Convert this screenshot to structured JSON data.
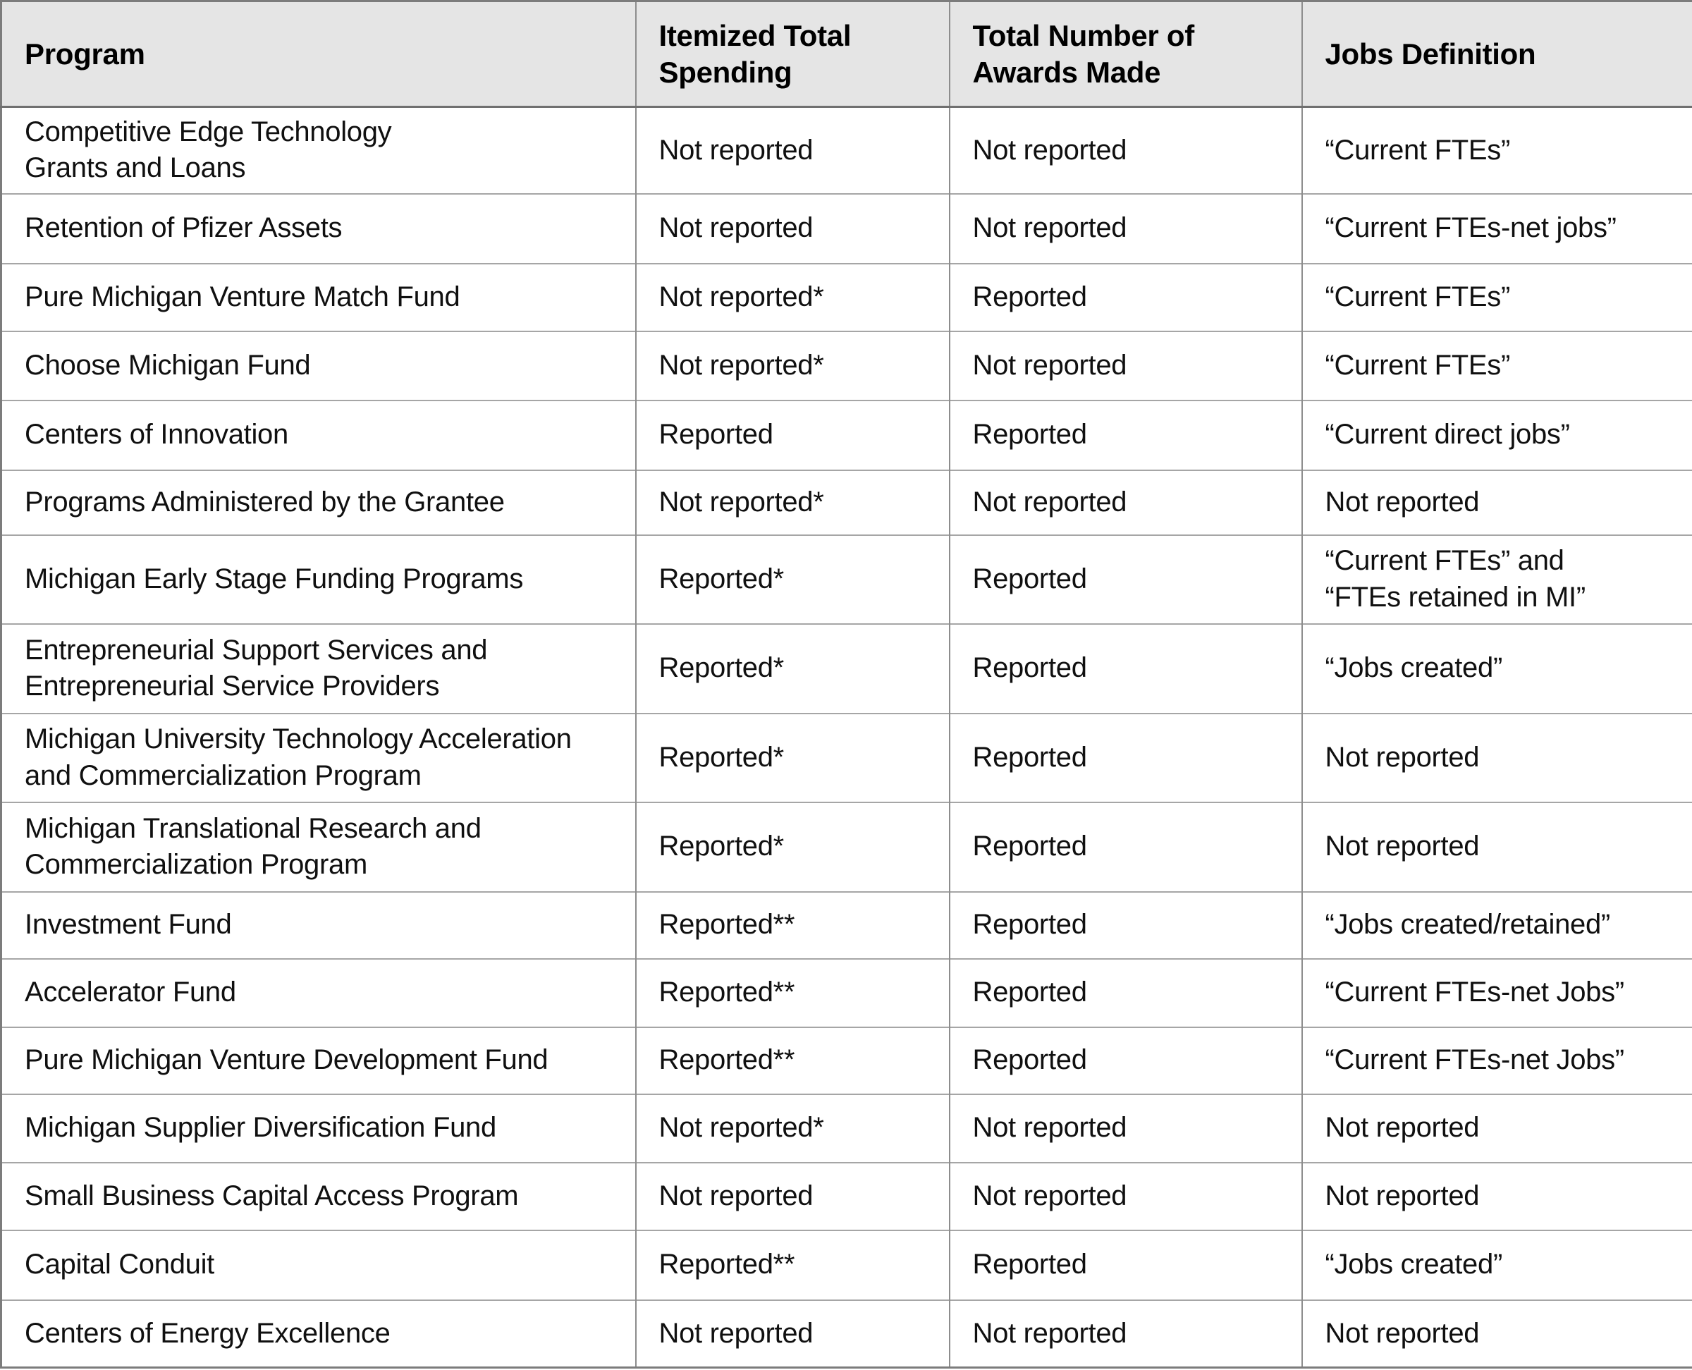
{
  "table": {
    "name": "program-reporting-table",
    "columns": [
      {
        "label": "Program"
      },
      {
        "label": "Itemized Total\nSpending"
      },
      {
        "label": "Total Number of\nAwards Made"
      },
      {
        "label": "Jobs Definition"
      }
    ],
    "rows": [
      {
        "program": "Competitive Edge Technology\nGrants and Loans",
        "spending": "Not reported",
        "awards": "Not reported",
        "jobs": "“Current FTEs”",
        "height": 123
      },
      {
        "program": "Retention of Pfizer Assets",
        "spending": "Not reported",
        "awards": "Not reported",
        "jobs": "“Current FTEs-net jobs”",
        "height": 99
      },
      {
        "program": "Pure Michigan Venture Match Fund",
        "spending": "Not reported*",
        "awards": "Reported",
        "jobs": "“Current FTEs”",
        "height": 96
      },
      {
        "program": "Choose Michigan Fund",
        "spending": "Not reported*",
        "awards": "Not reported",
        "jobs": "“Current FTEs”",
        "height": 98
      },
      {
        "program": "Centers of Innovation",
        "spending": "Reported",
        "awards": "Reported",
        "jobs": "“Current direct jobs”",
        "height": 99
      },
      {
        "program": "Programs Administered by the Grantee",
        "spending": "Not reported*",
        "awards": "Not reported",
        "jobs": "Not reported",
        "height": 92
      },
      {
        "program": "Michigan Early Stage Funding Programs",
        "spending": "Reported*",
        "awards": "Reported",
        "jobs": "“Current FTEs” and\n“FTEs retained in MI”",
        "height": 126
      },
      {
        "program": "Entrepreneurial Support Services and\nEntrepreneurial Service Providers",
        "spending": "Reported*",
        "awards": "Reported",
        "jobs": "“Jobs created”",
        "height": 127
      },
      {
        "program": "Michigan University Technology Acceleration\nand Commercialization Program",
        "spending": "Reported*",
        "awards": "Reported",
        "jobs": "Not reported",
        "height": 126
      },
      {
        "program": "Michigan Translational Research and\nCommercialization Program",
        "spending": "Reported*",
        "awards": "Reported",
        "jobs": "Not reported",
        "height": 127
      },
      {
        "program": "Investment Fund",
        "spending": "Reported**",
        "awards": "Reported",
        "jobs": "“Jobs created/retained”",
        "height": 95
      },
      {
        "program": "Accelerator Fund",
        "spending": "Reported**",
        "awards": "Reported",
        "jobs": "“Current FTEs-net Jobs”",
        "height": 97
      },
      {
        "program": "Pure Michigan Venture Development Fund",
        "spending": "Reported**",
        "awards": "Reported",
        "jobs": "“Current FTEs-net Jobs”",
        "height": 95
      },
      {
        "program": "Michigan Supplier Diversification Fund",
        "spending": "Not reported*",
        "awards": "Not reported",
        "jobs": "Not reported",
        "height": 97
      },
      {
        "program": "Small Business Capital Access Program",
        "spending": "Not reported",
        "awards": "Not reported",
        "jobs": "Not reported",
        "height": 96
      },
      {
        "program": "Capital Conduit",
        "spending": "Reported**",
        "awards": "Reported",
        "jobs": "“Jobs created”",
        "height": 99
      },
      {
        "program": "Centers of Energy Excellence",
        "spending": "Not reported",
        "awards": "Not reported",
        "jobs": "Not reported",
        "height": 96
      }
    ]
  }
}
